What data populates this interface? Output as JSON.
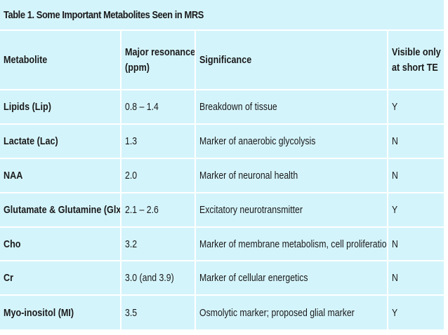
{
  "caption": "Table 1. Some Important Metabolites Seen in MRS",
  "headers": {
    "metabolite": "Metabolite",
    "resonance_line1": "Major resonance",
    "resonance_line2": "(ppm)",
    "significance": "Significance",
    "visible_line1": "Visible only",
    "visible_line2": "at short TE"
  },
  "rows": [
    {
      "metabolite": "Lipids (Lip)",
      "resonance": "0.8 – 1.4",
      "significance": "Breakdown of tissue",
      "visible": "Y"
    },
    {
      "metabolite": "Lactate (Lac)",
      "resonance": "1.3",
      "significance": "Marker of anaerobic glycolysis",
      "visible": "N"
    },
    {
      "metabolite": "NAA",
      "resonance": "2.0",
      "significance": "Marker of neuronal health",
      "visible": "N"
    },
    {
      "metabolite": "Glutamate & Glutamine (Glx)",
      "resonance": "2.1 – 2.6",
      "significance": "Excitatory neurotransmitter",
      "visible": "Y"
    },
    {
      "metabolite": "Cho",
      "resonance": "3.2",
      "significance": "Marker of membrane metabolism, cell proliferation",
      "visible": "N"
    },
    {
      "metabolite": "Cr",
      "resonance": "3.0 (and 3.9)",
      "significance": "Marker of cellular energetics",
      "visible": "N"
    },
    {
      "metabolite": "Myo-inositol (MI)",
      "resonance": "3.5",
      "significance": "Osmolytic marker; proposed glial marker",
      "visible": "Y"
    }
  ],
  "colors": {
    "cell_background": "#d4f4fb",
    "grid_lines": "#ffffff",
    "text": "#1a1a1a"
  }
}
